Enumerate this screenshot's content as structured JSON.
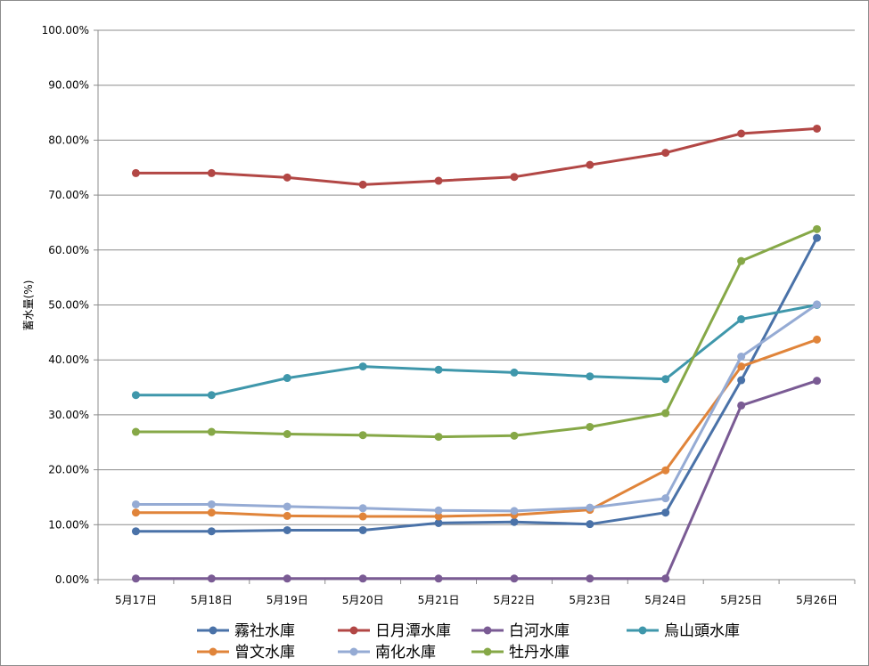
{
  "chart_data": {
    "type": "line",
    "title": "",
    "xlabel": "",
    "ylabel": "蓄水量(%)",
    "ylim": [
      0,
      100
    ],
    "y_ticks": [
      "0.00%",
      "10.00%",
      "20.00%",
      "30.00%",
      "40.00%",
      "50.00%",
      "60.00%",
      "70.00%",
      "80.00%",
      "90.00%",
      "100.00%"
    ],
    "categories": [
      "5月17日",
      "5月18日",
      "5月19日",
      "5月20日",
      "5月21日",
      "5月22日",
      "5月23日",
      "5月24日",
      "5月25日",
      "5月26日"
    ],
    "grid": "horizontal",
    "legend_position": "bottom",
    "series": [
      {
        "name": "霧社水庫",
        "color": "#4a72a8",
        "values": [
          8.8,
          8.8,
          9.0,
          9.0,
          10.3,
          10.5,
          10.1,
          12.2,
          36.3,
          62.2
        ]
      },
      {
        "name": "日月潭水庫",
        "color": "#b24745",
        "values": [
          74.0,
          74.0,
          73.2,
          71.9,
          72.6,
          73.3,
          75.5,
          77.7,
          81.2,
          82.1
        ]
      },
      {
        "name": "白河水庫",
        "color": "#7a5b94",
        "values": [
          0.2,
          0.2,
          0.2,
          0.2,
          0.2,
          0.2,
          0.2,
          0.2,
          31.7,
          36.2
        ]
      },
      {
        "name": "烏山頭水庫",
        "color": "#3f97ab",
        "values": [
          33.6,
          33.6,
          36.7,
          38.8,
          38.2,
          37.7,
          37.0,
          36.5,
          47.4,
          50.0
        ]
      },
      {
        "name": "曾文水庫",
        "color": "#e0843a",
        "values": [
          12.2,
          12.2,
          11.6,
          11.5,
          11.5,
          11.8,
          12.7,
          19.9,
          38.8,
          43.7
        ]
      },
      {
        "name": "南化水庫",
        "color": "#95abd4",
        "values": [
          13.7,
          13.7,
          13.3,
          13.0,
          12.6,
          12.5,
          13.1,
          14.8,
          40.6,
          50.1
        ]
      },
      {
        "name": "牡丹水庫",
        "color": "#86a847",
        "values": [
          26.9,
          26.9,
          26.5,
          26.3,
          26.0,
          26.2,
          27.8,
          30.3,
          58.0,
          63.8
        ]
      }
    ]
  }
}
